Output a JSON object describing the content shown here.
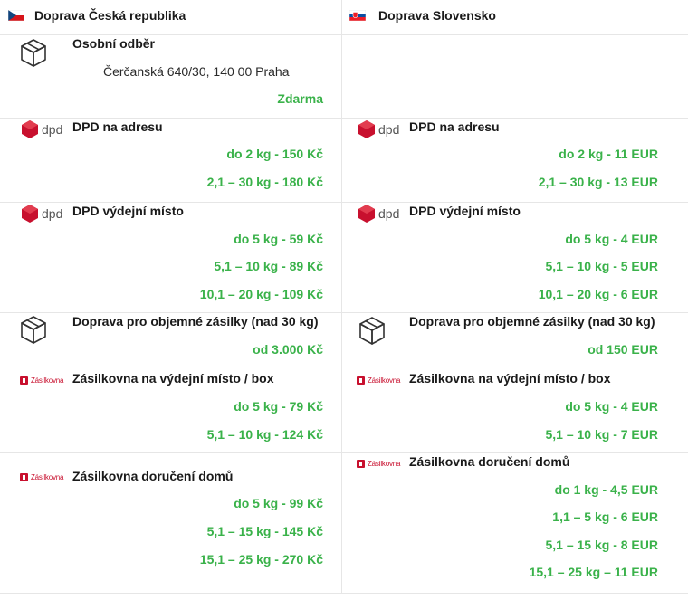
{
  "colors": {
    "price_green": "#3ab24a",
    "dpd_red": "#c8102e",
    "zasilkovna_red": "#c8102e",
    "divider": "#e6e6e6"
  },
  "cz": {
    "header": {
      "flag": "czech-flag",
      "title": "Doprava Česká republika"
    },
    "rows": [
      {
        "icon": "package-box-icon",
        "title": "Osobní odběr",
        "address": "Čerčanská 640/30, 140 00 Praha",
        "prices": [
          "Zdarma"
        ]
      },
      {
        "icon": "dpd-logo",
        "logo_text": "dpd",
        "title": "DPD na adresu",
        "prices": [
          "do 2 kg - 150 Kč",
          "2,1 – 30 kg - 180 Kč"
        ]
      },
      {
        "icon": "dpd-logo",
        "logo_text": "dpd",
        "title": "DPD výdejní místo",
        "prices": [
          "do 5 kg - 59 Kč",
          "5,1 – 10 kg - 89 Kč",
          "10,1 – 20 kg - 109 Kč"
        ]
      },
      {
        "icon": "package-box-icon",
        "title": "Doprava pro objemné zásilky (nad 30 kg)",
        "prices": [
          "od 3.000 Kč"
        ]
      },
      {
        "icon": "zasilkovna-logo",
        "logo_text": "Zásilkovna",
        "title": "Zásilkovna na výdejní místo / box",
        "prices": [
          "do 5 kg - 79 Kč",
          "5,1 – 10 kg - 124 Kč"
        ]
      },
      {
        "icon": "zasilkovna-logo",
        "logo_text": "Zásilkovna",
        "title": "Zásilkovna doručení domů",
        "prices": [
          "do 5 kg - 99 Kč",
          "5,1 – 15 kg - 145 Kč",
          "15,1 – 25 kg - 270 Kč"
        ]
      }
    ]
  },
  "sk": {
    "header": {
      "flag": "slovak-flag",
      "title": "Doprava Slovensko"
    },
    "rows": [
      {
        "empty": true
      },
      {
        "icon": "dpd-logo",
        "logo_text": "dpd",
        "title": "DPD na adresu",
        "prices": [
          "do 2 kg - 11 EUR",
          "2,1 – 30 kg - 13 EUR"
        ]
      },
      {
        "icon": "dpd-logo",
        "logo_text": "dpd",
        "title": "DPD výdejní místo",
        "prices": [
          "do 5 kg - 4 EUR",
          "5,1 – 10 kg - 5 EUR",
          "10,1 – 20 kg - 6 EUR"
        ]
      },
      {
        "icon": "package-box-icon",
        "title": "Doprava pro objemné zásilky (nad 30 kg)",
        "prices": [
          "od 150 EUR"
        ]
      },
      {
        "icon": "zasilkovna-logo",
        "logo_text": "Zásilkovna",
        "title": "Zásilkovna na výdejní místo / box",
        "prices": [
          "do 5 kg - 4 EUR",
          "5,1 – 10 kg - 7 EUR"
        ]
      },
      {
        "icon": "zasilkovna-logo",
        "logo_text": "Zásilkovna",
        "title": "Zásilkovna doručení domů",
        "prices": [
          "do 1 kg - 4,5 EUR",
          "1,1 – 5 kg - 6 EUR",
          "5,1 – 15 kg - 8 EUR",
          "15,1 – 25 kg – 11 EUR"
        ]
      }
    ]
  }
}
